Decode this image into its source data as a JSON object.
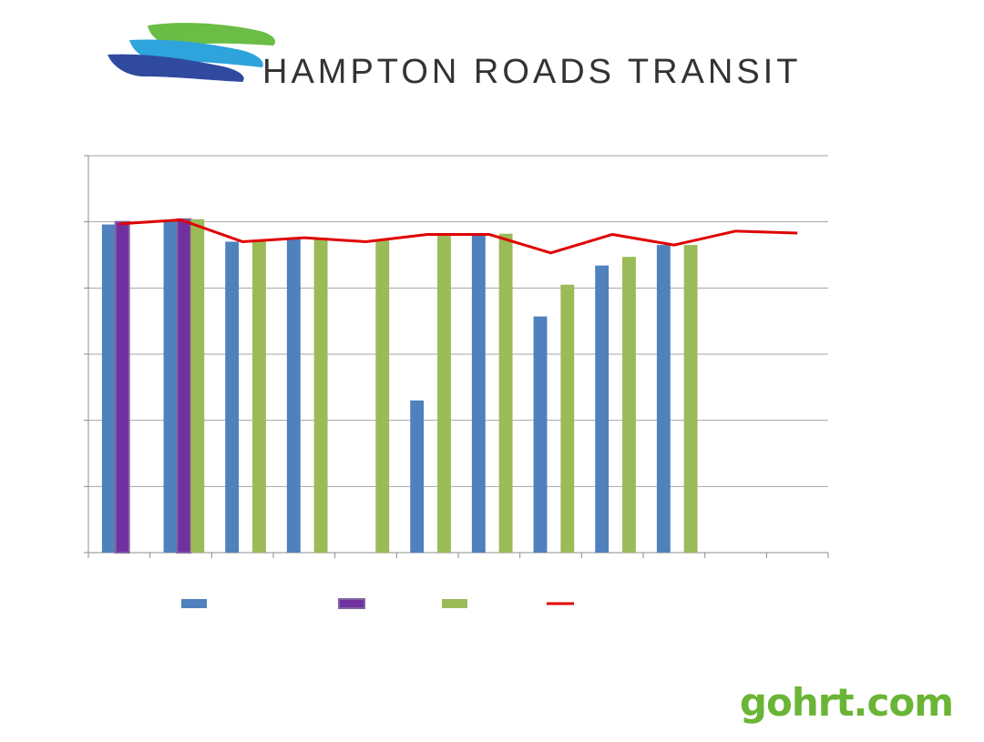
{
  "logo": {
    "text": "HAMPTON ROADS TRANSIT",
    "icon": "hrt-waves-logo"
  },
  "footer": {
    "site": "gohrt.com"
  },
  "colors": {
    "series1": "#4f81bd",
    "series2": "#7030a0",
    "series3": "#9bbb59",
    "line": "#e00000",
    "grid": "#a6a6a6"
  },
  "chart_data": {
    "type": "bar",
    "categories": [
      "",
      "",
      "",
      "",
      "",
      "",
      "",
      "",
      "",
      "",
      "",
      ""
    ],
    "ylim": [
      0,
      6
    ],
    "grid": true,
    "legend_position": "bottom",
    "series": [
      {
        "type": "bar",
        "color": "#4f81bd",
        "values": [
          4.96,
          5.0,
          4.7,
          4.75,
          null,
          2.3,
          4.8,
          3.57,
          4.34,
          4.65,
          null,
          null
        ]
      },
      {
        "type": "bar",
        "color": "#7030a0",
        "values": [
          5.0,
          5.04,
          null,
          null,
          null,
          null,
          null,
          null,
          null,
          null,
          null,
          null
        ]
      },
      {
        "type": "bar",
        "color": "#9bbb59",
        "values": [
          null,
          5.04,
          4.7,
          4.76,
          4.72,
          4.8,
          4.82,
          4.05,
          4.47,
          4.65,
          null,
          null
        ]
      },
      {
        "type": "line",
        "color": "#e00000",
        "values": [
          4.97,
          5.03,
          4.7,
          4.76,
          4.7,
          4.81,
          4.81,
          4.53,
          4.81,
          4.65,
          4.86,
          4.83
        ]
      }
    ]
  }
}
